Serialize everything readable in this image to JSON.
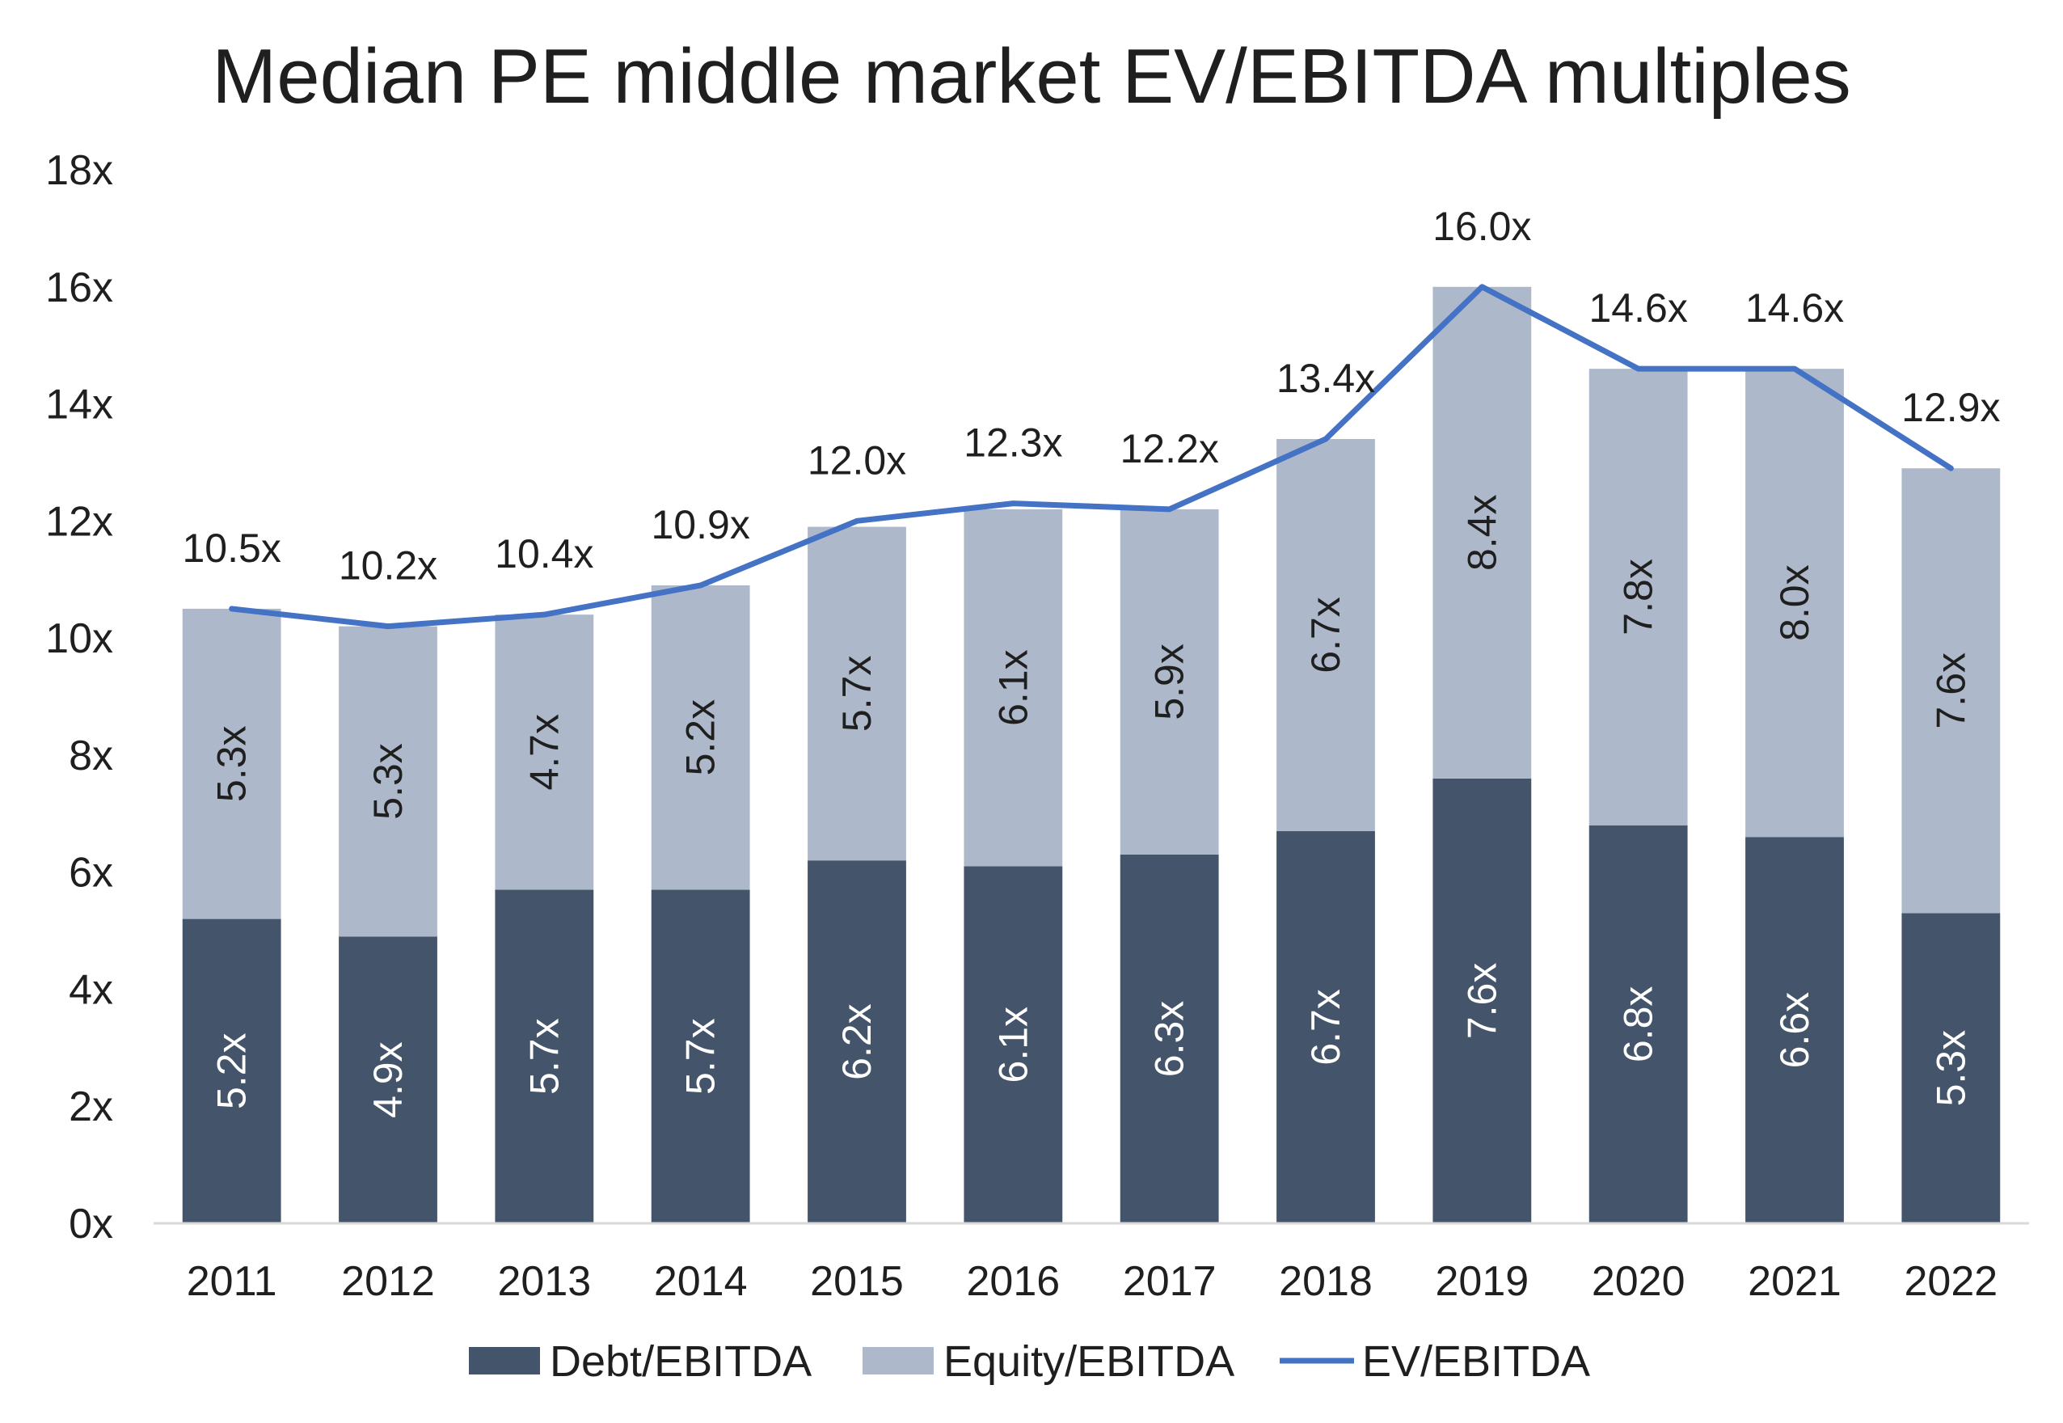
{
  "chart_data": {
    "type": "bar",
    "title": "Median PE middle market EV/EBITDA multiples",
    "categories": [
      "2011",
      "2012",
      "2013",
      "2014",
      "2015",
      "2016",
      "2017",
      "2018",
      "2019",
      "2020",
      "2021",
      "2022"
    ],
    "series": [
      {
        "name": "Debt/EBITDA",
        "type": "bar",
        "stacked": true,
        "color": "#44546a",
        "values": [
          5.2,
          4.9,
          5.7,
          5.7,
          6.2,
          6.1,
          6.3,
          6.7,
          7.6,
          6.8,
          6.6,
          5.3
        ],
        "labels": [
          "5.2x",
          "4.9x",
          "5.7x",
          "5.7x",
          "6.2x",
          "6.1x",
          "6.3x",
          "6.7x",
          "7.6x",
          "6.8x",
          "6.6x",
          "5.3x"
        ]
      },
      {
        "name": "Equity/EBITDA",
        "type": "bar",
        "stacked": true,
        "color": "#adb9ca",
        "values": [
          5.3,
          5.3,
          4.7,
          5.2,
          5.7,
          6.1,
          5.9,
          6.7,
          8.4,
          7.8,
          8.0,
          7.6
        ],
        "labels": [
          "5.3x",
          "5.3x",
          "4.7x",
          "5.2x",
          "5.7x",
          "6.1x",
          "5.9x",
          "6.7x",
          "8.4x",
          "7.8x",
          "8.0x",
          "7.6x"
        ]
      },
      {
        "name": "EV/EBITDA",
        "type": "line",
        "color": "#4472c4",
        "values": [
          10.5,
          10.2,
          10.4,
          10.9,
          12.0,
          12.3,
          12.2,
          13.4,
          16.0,
          14.6,
          14.6,
          12.9
        ],
        "labels": [
          "10.5x",
          "10.2x",
          "10.4x",
          "10.9x",
          "12.0x",
          "12.3x",
          "12.2x",
          "13.4x",
          "16.0x",
          "14.6x",
          "14.6x",
          "12.9x"
        ]
      }
    ],
    "ylim": [
      0,
      18
    ],
    "yticks": [
      0,
      2,
      4,
      6,
      8,
      10,
      12,
      14,
      16,
      18
    ],
    "ytick_labels": [
      "0x",
      "2x",
      "4x",
      "6x",
      "8x",
      "10x",
      "12x",
      "14x",
      "16x",
      "18x"
    ],
    "xlabel": "",
    "ylabel": "",
    "grid": false,
    "legend_position": "bottom",
    "debt_label_color": "#ffffff",
    "equity_label_color": "#1f1f1f",
    "line_label_color": "#1f1f1f",
    "axis_color": "#d9d9d9"
  }
}
